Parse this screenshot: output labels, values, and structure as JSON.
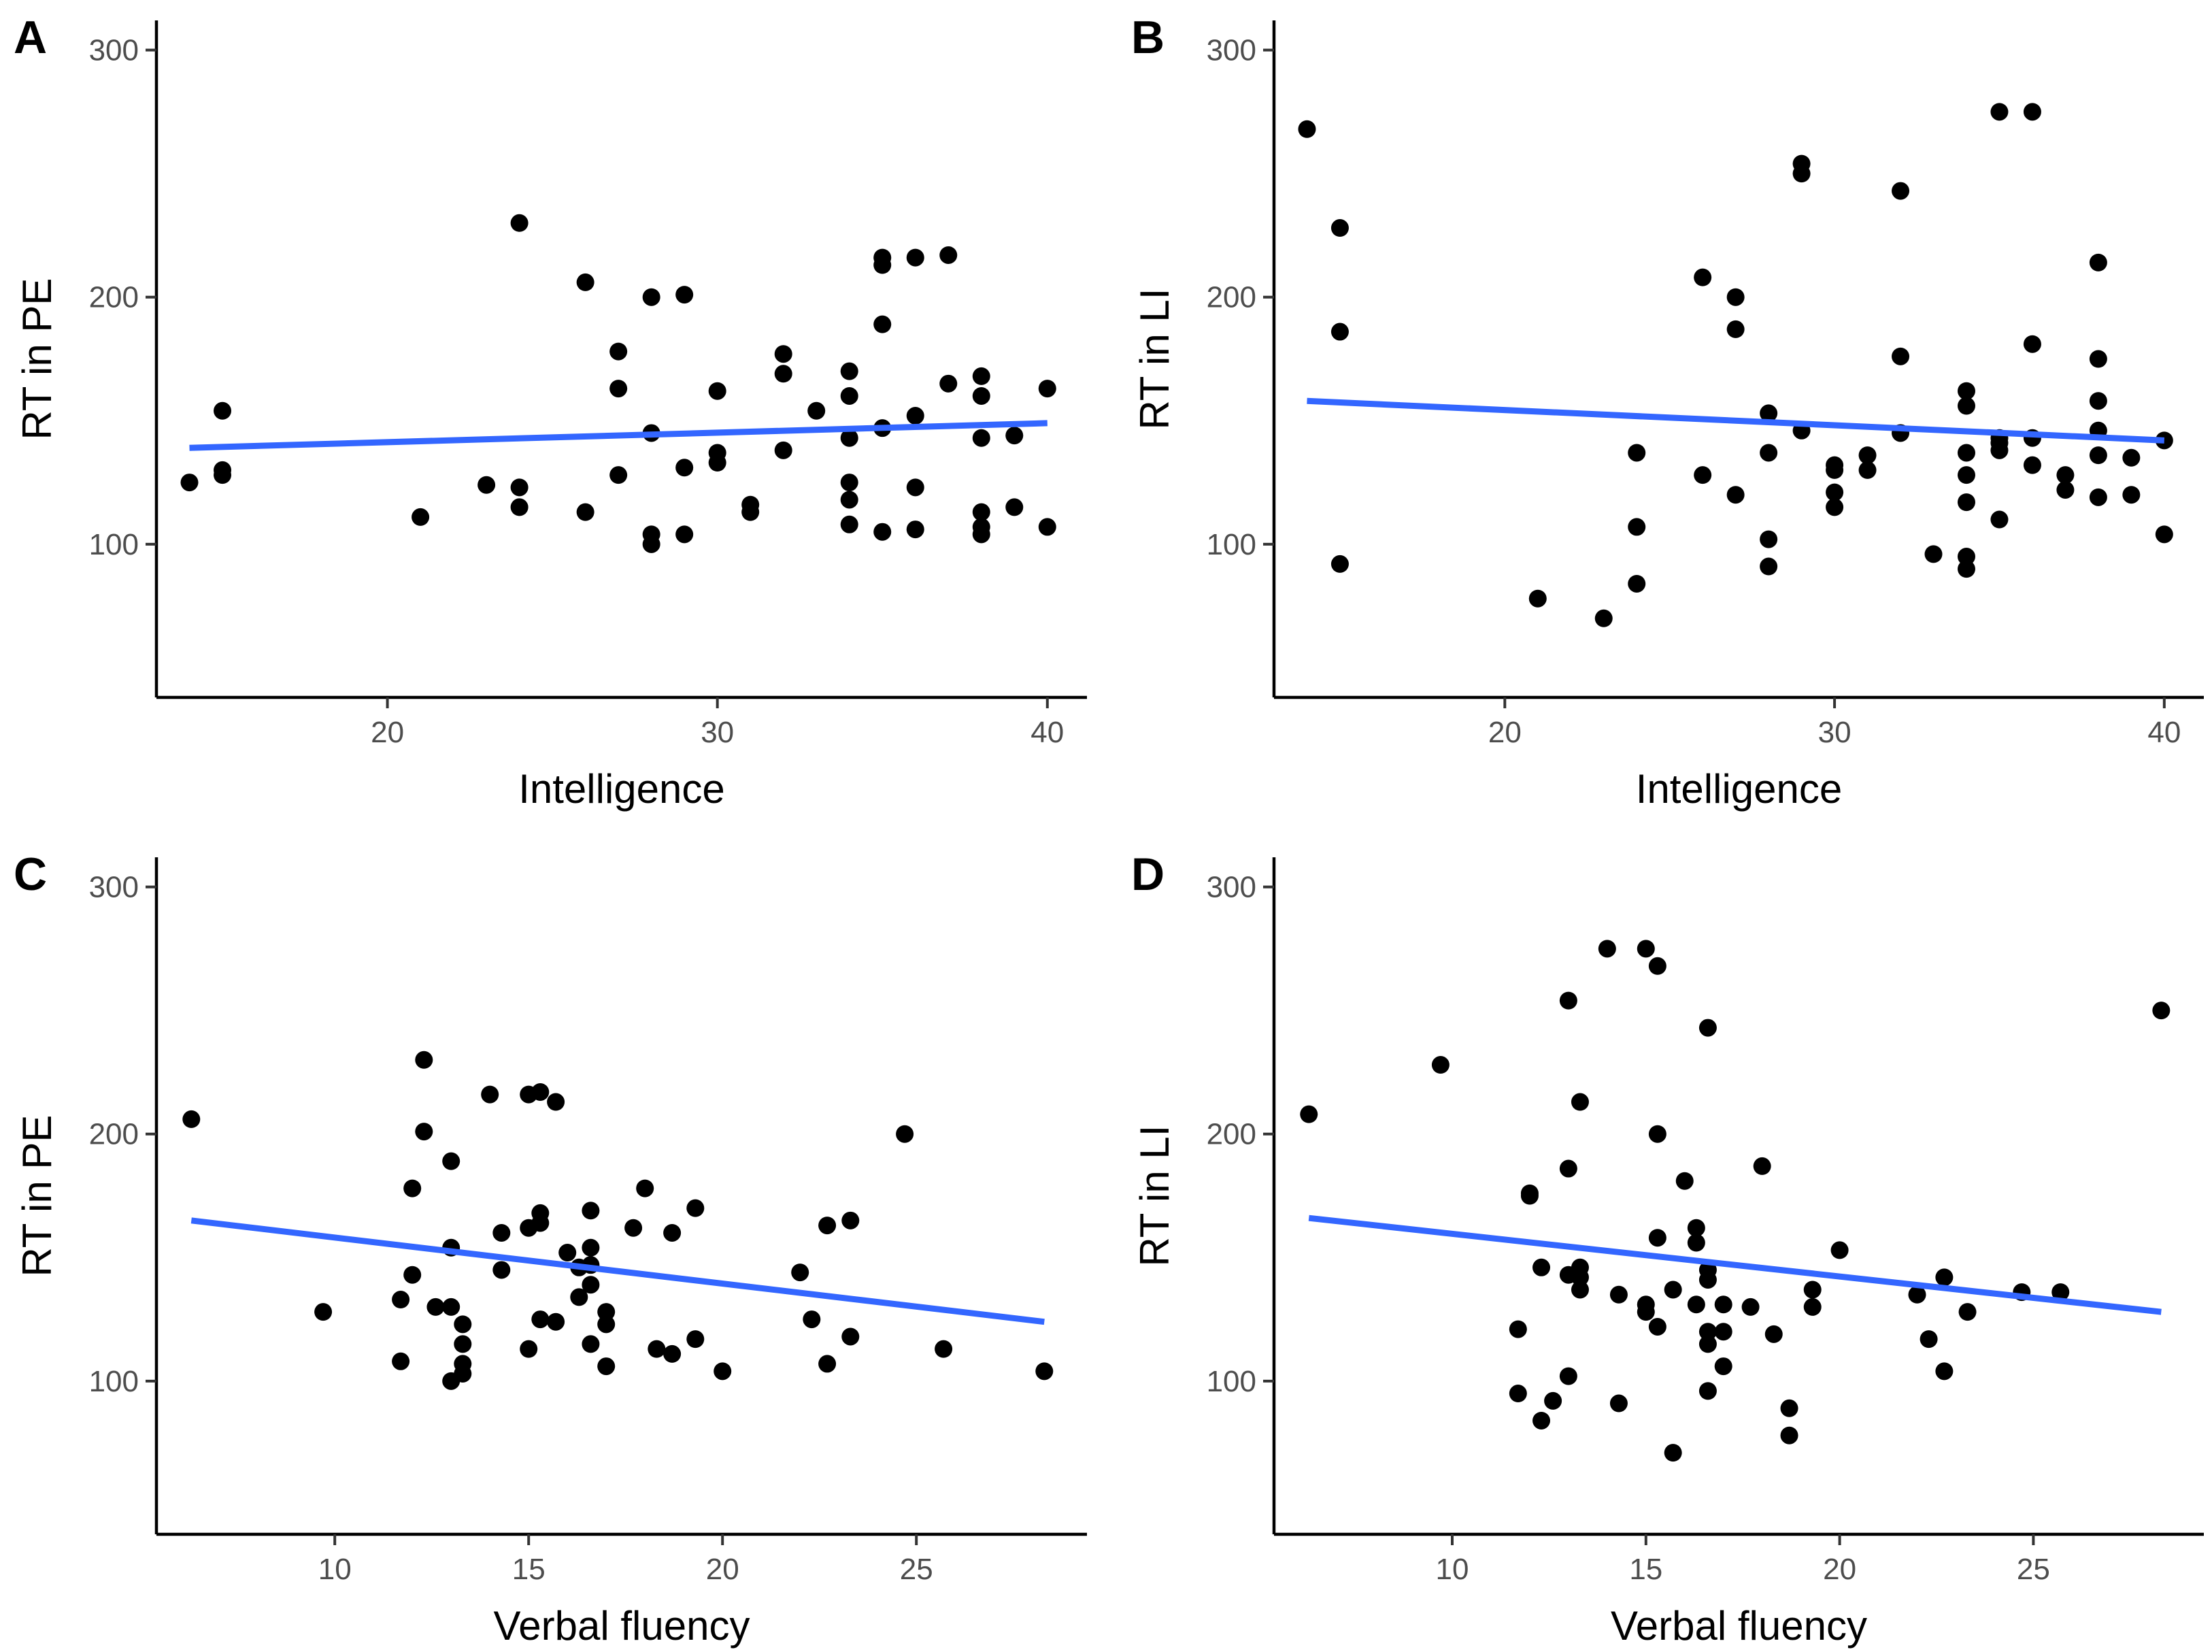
{
  "colors": {
    "fit_line": "#3366FF",
    "points": "#000000",
    "axis": "#000000"
  },
  "chart_data": [
    {
      "panel": "A",
      "type": "scatter",
      "title": "",
      "xlabel": "Intelligence",
      "ylabel": "RT in PE",
      "xlim": [
        13,
        41.2
      ],
      "ylim": [
        38,
        312
      ],
      "xticks": [
        20,
        30,
        40
      ],
      "xtick_labels": [
        "20",
        "30",
        "40"
      ],
      "yticks": [
        100,
        200,
        300
      ],
      "ytick_labels": [
        "100",
        "200",
        "300"
      ],
      "fit": {
        "x": [
          14,
          40
        ],
        "y": [
          139,
          149
        ]
      },
      "points": [
        [
          14,
          125
        ],
        [
          15,
          154
        ],
        [
          15,
          130
        ],
        [
          15,
          128
        ],
        [
          21,
          111
        ],
        [
          23,
          124
        ],
        [
          24,
          230
        ],
        [
          24,
          123
        ],
        [
          24,
          115
        ],
        [
          26,
          206
        ],
        [
          26,
          113
        ],
        [
          27,
          178
        ],
        [
          27,
          163
        ],
        [
          27,
          128
        ],
        [
          28,
          200
        ],
        [
          28,
          145
        ],
        [
          28,
          104
        ],
        [
          28,
          100
        ],
        [
          29,
          201
        ],
        [
          29,
          131
        ],
        [
          29,
          104
        ],
        [
          30,
          162
        ],
        [
          30,
          137
        ],
        [
          30,
          133
        ],
        [
          31,
          116
        ],
        [
          31,
          113
        ],
        [
          32,
          177
        ],
        [
          32,
          169
        ],
        [
          32,
          138
        ],
        [
          33,
          154
        ],
        [
          34,
          170
        ],
        [
          34,
          160
        ],
        [
          34,
          143
        ],
        [
          34,
          125
        ],
        [
          34,
          118
        ],
        [
          34,
          108
        ],
        [
          35,
          216
        ],
        [
          35,
          213
        ],
        [
          35,
          189
        ],
        [
          35,
          147
        ],
        [
          35,
          105
        ],
        [
          36,
          216
        ],
        [
          36,
          152
        ],
        [
          36,
          123
        ],
        [
          36,
          106
        ],
        [
          37,
          217
        ],
        [
          37,
          165
        ],
        [
          38,
          168
        ],
        [
          38,
          160
        ],
        [
          38,
          143
        ],
        [
          38,
          113
        ],
        [
          38,
          107
        ],
        [
          38,
          104
        ],
        [
          39,
          144
        ],
        [
          39,
          115
        ],
        [
          40,
          163
        ],
        [
          40,
          107
        ]
      ]
    },
    {
      "panel": "B",
      "type": "scatter",
      "title": "",
      "xlabel": "Intelligence",
      "ylabel": "RT in LI",
      "xlim": [
        13,
        41.2
      ],
      "ylim": [
        38,
        312
      ],
      "xticks": [
        20,
        30,
        40
      ],
      "xtick_labels": [
        "20",
        "30",
        "40"
      ],
      "yticks": [
        100,
        200,
        300
      ],
      "ytick_labels": [
        "100",
        "200",
        "300"
      ],
      "fit": {
        "x": [
          14,
          40
        ],
        "y": [
          158,
          142
        ]
      },
      "points": [
        [
          14,
          268
        ],
        [
          15,
          228
        ],
        [
          15,
          186
        ],
        [
          15,
          92
        ],
        [
          21,
          78
        ],
        [
          23,
          70
        ],
        [
          24,
          137
        ],
        [
          24,
          107
        ],
        [
          24,
          84
        ],
        [
          26,
          208
        ],
        [
          26,
          128
        ],
        [
          27,
          200
        ],
        [
          27,
          187
        ],
        [
          27,
          120
        ],
        [
          28,
          153
        ],
        [
          28,
          137
        ],
        [
          28,
          102
        ],
        [
          28,
          91
        ],
        [
          29,
          254
        ],
        [
          29,
          250
        ],
        [
          29,
          146
        ],
        [
          30,
          132
        ],
        [
          30,
          130
        ],
        [
          30,
          121
        ],
        [
          30,
          115
        ],
        [
          31,
          136
        ],
        [
          31,
          130
        ],
        [
          32,
          243
        ],
        [
          32,
          176
        ],
        [
          32,
          145
        ],
        [
          33,
          96
        ],
        [
          34,
          162
        ],
        [
          34,
          156
        ],
        [
          34,
          137
        ],
        [
          34,
          128
        ],
        [
          34,
          117
        ],
        [
          34,
          95
        ],
        [
          34,
          90
        ],
        [
          35,
          275
        ],
        [
          35,
          143
        ],
        [
          35,
          141
        ],
        [
          35,
          138
        ],
        [
          35,
          110
        ],
        [
          36,
          275
        ],
        [
          36,
          181
        ],
        [
          36,
          143
        ],
        [
          36,
          132
        ],
        [
          37,
          128
        ],
        [
          37,
          122
        ],
        [
          38,
          214
        ],
        [
          38,
          175
        ],
        [
          38,
          158
        ],
        [
          38,
          146
        ],
        [
          38,
          136
        ],
        [
          38,
          119
        ],
        [
          39,
          135
        ],
        [
          39,
          120
        ],
        [
          40,
          142
        ],
        [
          40,
          104
        ]
      ]
    },
    {
      "panel": "C",
      "type": "scatter",
      "title": "",
      "xlabel": "Verbal fluency",
      "ylabel": "RT in PE",
      "xlim": [
        5.4,
        29.4
      ],
      "ylim": [
        38,
        312
      ],
      "xticks": [
        10,
        15,
        20,
        25
      ],
      "xtick_labels": [
        "10",
        "15",
        "20",
        "25"
      ],
      "yticks": [
        100,
        200,
        300
      ],
      "ytick_labels": [
        "100",
        "200",
        "300"
      ],
      "fit": {
        "x": [
          6.3,
          28.3
        ],
        "y": [
          165,
          124
        ]
      },
      "points": [
        [
          6.3,
          206
        ],
        [
          9.7,
          128
        ],
        [
          11.7,
          108
        ],
        [
          11.7,
          133
        ],
        [
          12.0,
          178
        ],
        [
          12.0,
          143
        ],
        [
          12.3,
          230
        ],
        [
          12.3,
          201
        ],
        [
          12.6,
          130
        ],
        [
          13.0,
          189
        ],
        [
          13.0,
          154
        ],
        [
          13.0,
          130
        ],
        [
          13.0,
          100
        ],
        [
          13.3,
          123
        ],
        [
          13.3,
          115
        ],
        [
          13.3,
          107
        ],
        [
          13.3,
          103
        ],
        [
          14.0,
          216
        ],
        [
          14.3,
          160
        ],
        [
          14.3,
          145
        ],
        [
          15.0,
          216
        ],
        [
          15.0,
          162
        ],
        [
          15.0,
          113
        ],
        [
          15.3,
          217
        ],
        [
          15.3,
          168
        ],
        [
          15.3,
          164
        ],
        [
          15.3,
          125
        ],
        [
          15.7,
          213
        ],
        [
          15.7,
          124
        ],
        [
          16.0,
          152
        ],
        [
          16.3,
          146
        ],
        [
          16.3,
          134
        ],
        [
          16.6,
          169
        ],
        [
          16.6,
          154
        ],
        [
          16.6,
          147
        ],
        [
          16.6,
          139
        ],
        [
          16.6,
          115
        ],
        [
          17.0,
          128
        ],
        [
          17.0,
          123
        ],
        [
          17.0,
          106
        ],
        [
          17.7,
          162
        ],
        [
          18.0,
          178
        ],
        [
          18.3,
          113
        ],
        [
          18.7,
          160
        ],
        [
          18.7,
          111
        ],
        [
          19.3,
          170
        ],
        [
          19.3,
          117
        ],
        [
          20.0,
          104
        ],
        [
          22.0,
          144
        ],
        [
          22.3,
          125
        ],
        [
          22.7,
          163
        ],
        [
          22.7,
          107
        ],
        [
          23.3,
          165
        ],
        [
          23.3,
          118
        ],
        [
          24.7,
          200
        ],
        [
          25.7,
          113
        ],
        [
          28.3,
          104
        ]
      ]
    },
    {
      "panel": "D",
      "type": "scatter",
      "title": "",
      "xlabel": "Verbal fluency",
      "ylabel": "RT in LI",
      "xlim": [
        5.4,
        29.4
      ],
      "ylim": [
        38,
        312
      ],
      "xticks": [
        10,
        15,
        20,
        25
      ],
      "xtick_labels": [
        "10",
        "15",
        "20",
        "25"
      ],
      "yticks": [
        100,
        200,
        300
      ],
      "ytick_labels": [
        "100",
        "200",
        "300"
      ],
      "fit": {
        "x": [
          6.3,
          28.3
        ],
        "y": [
          166,
          128
        ]
      },
      "points": [
        [
          6.3,
          208
        ],
        [
          9.7,
          228
        ],
        [
          11.7,
          121
        ],
        [
          11.7,
          95
        ],
        [
          12.0,
          176
        ],
        [
          12.0,
          175
        ],
        [
          12.3,
          146
        ],
        [
          12.3,
          84
        ],
        [
          12.6,
          92
        ],
        [
          13.0,
          254
        ],
        [
          13.0,
          186
        ],
        [
          13.0,
          143
        ],
        [
          13.0,
          102
        ],
        [
          13.3,
          213
        ],
        [
          13.3,
          146
        ],
        [
          13.3,
          142
        ],
        [
          13.3,
          137
        ],
        [
          14.0,
          275
        ],
        [
          14.3,
          135
        ],
        [
          14.3,
          91
        ],
        [
          15.0,
          275
        ],
        [
          15.0,
          131
        ],
        [
          15.0,
          128
        ],
        [
          15.3,
          268
        ],
        [
          15.3,
          200
        ],
        [
          15.3,
          158
        ],
        [
          15.3,
          122
        ],
        [
          15.7,
          137
        ],
        [
          15.7,
          71
        ],
        [
          16.0,
          181
        ],
        [
          16.3,
          162
        ],
        [
          16.3,
          156
        ],
        [
          16.3,
          131
        ],
        [
          16.6,
          243
        ],
        [
          16.6,
          145
        ],
        [
          16.6,
          141
        ],
        [
          16.6,
          120
        ],
        [
          16.6,
          115
        ],
        [
          16.6,
          96
        ],
        [
          17.0,
          131
        ],
        [
          17.0,
          120
        ],
        [
          17.0,
          106
        ],
        [
          17.7,
          130
        ],
        [
          18.0,
          187
        ],
        [
          18.3,
          119
        ],
        [
          18.7,
          89
        ],
        [
          18.7,
          78
        ],
        [
          19.3,
          137
        ],
        [
          19.3,
          130
        ],
        [
          20.0,
          153
        ],
        [
          22.0,
          135
        ],
        [
          22.3,
          117
        ],
        [
          22.7,
          142
        ],
        [
          22.7,
          104
        ],
        [
          23.3,
          128
        ],
        [
          24.7,
          136
        ],
        [
          25.7,
          136
        ],
        [
          28.3,
          250
        ]
      ]
    }
  ]
}
